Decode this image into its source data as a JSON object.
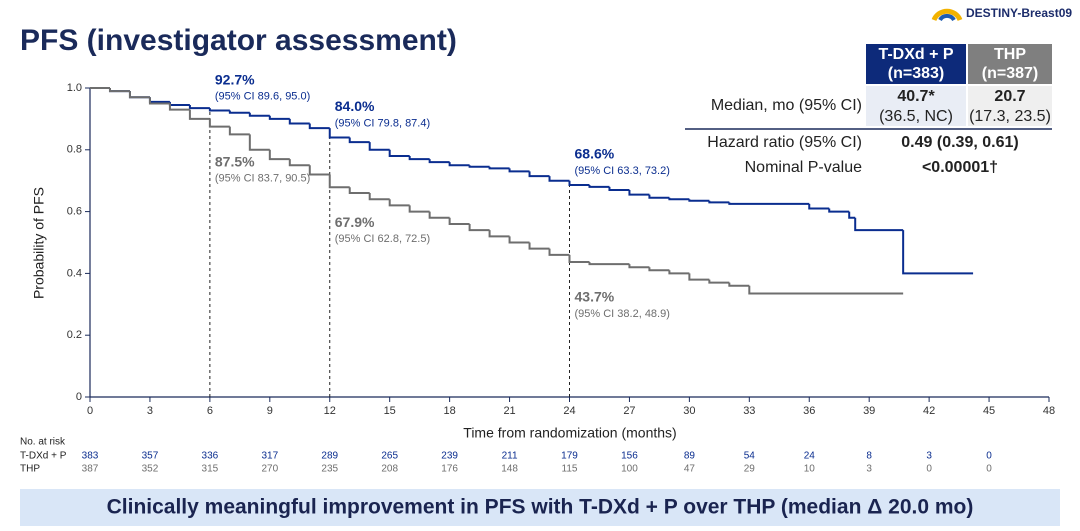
{
  "logo": {
    "text": "DESTINY-Breast09"
  },
  "chart_data": {
    "type": "line",
    "step": true,
    "title": "PFS (investigator assessment)",
    "x_label": "Time from randomization (months)",
    "y_label": "Probability of PFS",
    "xlim": [
      0,
      48
    ],
    "xticks": [
      0,
      3,
      6,
      9,
      12,
      15,
      18,
      21,
      24,
      27,
      30,
      33,
      36,
      39,
      42,
      45,
      48
    ],
    "ylim": [
      0,
      1
    ],
    "yticks": [
      0,
      0.2,
      0.4,
      0.6,
      0.8,
      {
        "value": 1,
        "label": "1.0"
      }
    ],
    "series": [
      {
        "name": "T-DXd + P",
        "color": "#0a2d8f",
        "x": [
          0,
          1,
          2,
          3,
          4,
          5,
          6,
          7,
          8,
          9,
          10,
          11,
          12,
          13,
          14,
          15,
          16,
          17,
          18,
          19,
          20,
          21,
          22,
          23,
          24,
          25,
          26,
          27,
          28,
          29,
          30,
          31,
          32,
          36,
          37,
          38,
          38.3,
          40.7,
          44.2
        ],
        "values": [
          1,
          0.99,
          0.97,
          0.955,
          0.945,
          0.935,
          0.927,
          0.92,
          0.91,
          0.9,
          0.885,
          0.87,
          0.84,
          0.825,
          0.8,
          0.78,
          0.77,
          0.76,
          0.75,
          0.745,
          0.74,
          0.73,
          0.715,
          0.7,
          0.686,
          0.68,
          0.67,
          0.655,
          0.645,
          0.64,
          0.635,
          0.63,
          0.625,
          0.61,
          0.6,
          0.58,
          0.54,
          0.4,
          0.4
        ],
        "landmarks": [
          {
            "x": 6,
            "label": "92.7%",
            "ci": "(95% CI 89.6, 95.0)"
          },
          {
            "x": 12,
            "label": "84.0%",
            "ci": "(95% CI 79.8, 87.4)"
          },
          {
            "x": 24,
            "label": "68.6%",
            "ci": "(95% CI 63.3, 73.2)"
          }
        ]
      },
      {
        "name": "THP",
        "color": "#6e6e6e",
        "x": [
          0,
          1,
          2,
          3,
          4,
          5,
          6,
          7,
          8,
          9,
          10,
          11,
          12,
          13,
          14,
          15,
          16,
          17,
          18,
          19,
          20,
          21,
          22,
          23,
          24,
          25,
          27,
          28,
          29,
          30,
          31,
          32,
          33,
          40.7
        ],
        "values": [
          1,
          0.99,
          0.97,
          0.95,
          0.93,
          0.9,
          0.875,
          0.85,
          0.8,
          0.77,
          0.75,
          0.72,
          0.679,
          0.66,
          0.64,
          0.62,
          0.6,
          0.58,
          0.56,
          0.54,
          0.52,
          0.5,
          0.48,
          0.46,
          0.437,
          0.43,
          0.42,
          0.41,
          0.4,
          0.38,
          0.37,
          0.36,
          0.335,
          0.335
        ],
        "landmarks": [
          {
            "x": 6,
            "label": "87.5%",
            "ci": "(95% CI 83.7, 90.5)"
          },
          {
            "x": 12,
            "label": "67.9%",
            "ci": "(95% CI 62.8, 72.5)"
          },
          {
            "x": 24,
            "label": "43.7%",
            "ci": "(95% CI 38.2, 48.9)"
          }
        ]
      }
    ],
    "risk_table": {
      "title": "No. at risk",
      "times": [
        0,
        3,
        6,
        9,
        12,
        15,
        18,
        21,
        24,
        27,
        30,
        33,
        36,
        39,
        42,
        45
      ],
      "rows": [
        {
          "name": "T-DXd + P",
          "values": [
            383,
            357,
            336,
            317,
            289,
            265,
            239,
            211,
            179,
            156,
            89,
            54,
            24,
            8,
            3,
            0
          ]
        },
        {
          "name": "THP",
          "values": [
            387,
            352,
            315,
            270,
            235,
            208,
            176,
            148,
            115,
            100,
            47,
            29,
            10,
            3,
            0,
            0
          ]
        }
      ]
    }
  },
  "stats_table": {
    "columns": [
      {
        "name": "T-DXd + P",
        "n": "(n=383)"
      },
      {
        "name": "THP",
        "n": "(n=387)"
      }
    ],
    "median": {
      "label": "Median, mo (95% CI)",
      "values": [
        "40.7*",
        "20.7"
      ],
      "ci": [
        "(36.5, NC)",
        "(17.3, 23.5)"
      ]
    },
    "hazard_ratio": {
      "label": "Hazard ratio (95% CI)",
      "value": "0.49 (0.39, 0.61)"
    },
    "p_value": {
      "label": "Nominal P-value",
      "value": "<0.00001†"
    }
  },
  "footer": "Clinically meaningful improvement in PFS with T-DXd + P over THP (median Δ 20.0 mo)"
}
